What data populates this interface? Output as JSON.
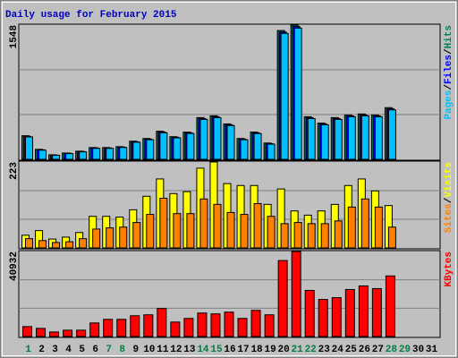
{
  "chart_data": {
    "type": "bar",
    "title": "Daily usage for February 2015",
    "categories": [
      "1",
      "2",
      "3",
      "4",
      "5",
      "6",
      "7",
      "8",
      "9",
      "10",
      "11",
      "12",
      "13",
      "14",
      "15",
      "16",
      "17",
      "18",
      "19",
      "20",
      "21",
      "22",
      "23",
      "24",
      "25",
      "26",
      "27",
      "28",
      "29",
      "30",
      "31"
    ],
    "category_colors": [
      "#008040",
      "#000000",
      "#000000",
      "#000000",
      "#000000",
      "#000000",
      "#008040",
      "#008040",
      "#000000",
      "#000000",
      "#000000",
      "#000000",
      "#000000",
      "#008040",
      "#008040",
      "#000000",
      "#000000",
      "#000000",
      "#000000",
      "#000000",
      "#008040",
      "#008040",
      "#000000",
      "#000000",
      "#000000",
      "#000000",
      "#000000",
      "#008040",
      "#008040",
      "#000000",
      "#000000"
    ],
    "legend_separator": "/",
    "grid": true,
    "panels": [
      {
        "ylim": [
          0,
          1548
        ],
        "yticks": [
          1548
        ],
        "series": [
          {
            "name": "Hits",
            "color": "#00805c",
            "values": [
              272,
              115,
              52,
              73,
              94,
              136,
              136,
              146,
              209,
              240,
              324,
              261,
              314,
              481,
              502,
              408,
              240,
              314,
              188,
              1485,
              1548,
              491,
              418,
              481,
              512,
              523,
              512,
              596,
              null,
              null,
              null
            ]
          },
          {
            "name": "Files",
            "color": "#0000ff",
            "values": [
              265,
              110,
              49,
              70,
              90,
              131,
              131,
              141,
              203,
              233,
              315,
              254,
              306,
              470,
              491,
              398,
              233,
              305,
              181,
              1468,
              1531,
              480,
              408,
              470,
              501,
              512,
              500,
              583,
              null,
              null,
              null
            ]
          },
          {
            "name": "Pages",
            "color": "#00c0ff",
            "values": [
              258,
              105,
              46,
              66,
              86,
              126,
              126,
              136,
              197,
              226,
              306,
              247,
              298,
              460,
              480,
              389,
              226,
              297,
              175,
              1452,
              1513,
              470,
              398,
              460,
              490,
              501,
              489,
              570,
              null,
              null,
              null
            ]
          }
        ]
      },
      {
        "ylim": [
          0,
          223
        ],
        "yticks": [
          223
        ],
        "series": [
          {
            "name": "Visits",
            "color": "#ffff00",
            "values": [
              33,
              45,
              23,
              28,
              40,
              82,
              82,
              80,
              99,
              134,
              179,
              141,
              146,
              207,
              223,
              167,
              162,
              162,
              113,
              153,
              96,
              85,
              96,
              113,
              162,
              179,
              148,
              110,
              null,
              null,
              null
            ]
          },
          {
            "name": "Sites",
            "color": "#ff8000",
            "values": [
              24,
              19,
              14,
              16,
              24,
              49,
              52,
              54,
              66,
              87,
              129,
              89,
              89,
              127,
              113,
              92,
              87,
              115,
              82,
              63,
              66,
              63,
              63,
              70,
              106,
              127,
              106,
              54,
              null,
              null,
              null
            ]
          }
        ]
      },
      {
        "ylim": [
          0,
          40932
        ],
        "yticks": [
          40932
        ],
        "series": [
          {
            "name": "KBytes",
            "color": "#ff0000",
            "values": [
              4790,
              3920,
              2180,
              3050,
              3050,
              6530,
              8270,
              8270,
              10000,
              10450,
              13500,
              6970,
              8710,
              11300,
              10900,
              11750,
              8710,
              12600,
              10450,
              36580,
              40932,
              22200,
              17850,
              18720,
              22640,
              24380,
              23070,
              29170,
              null,
              null,
              null
            ]
          }
        ]
      }
    ]
  }
}
